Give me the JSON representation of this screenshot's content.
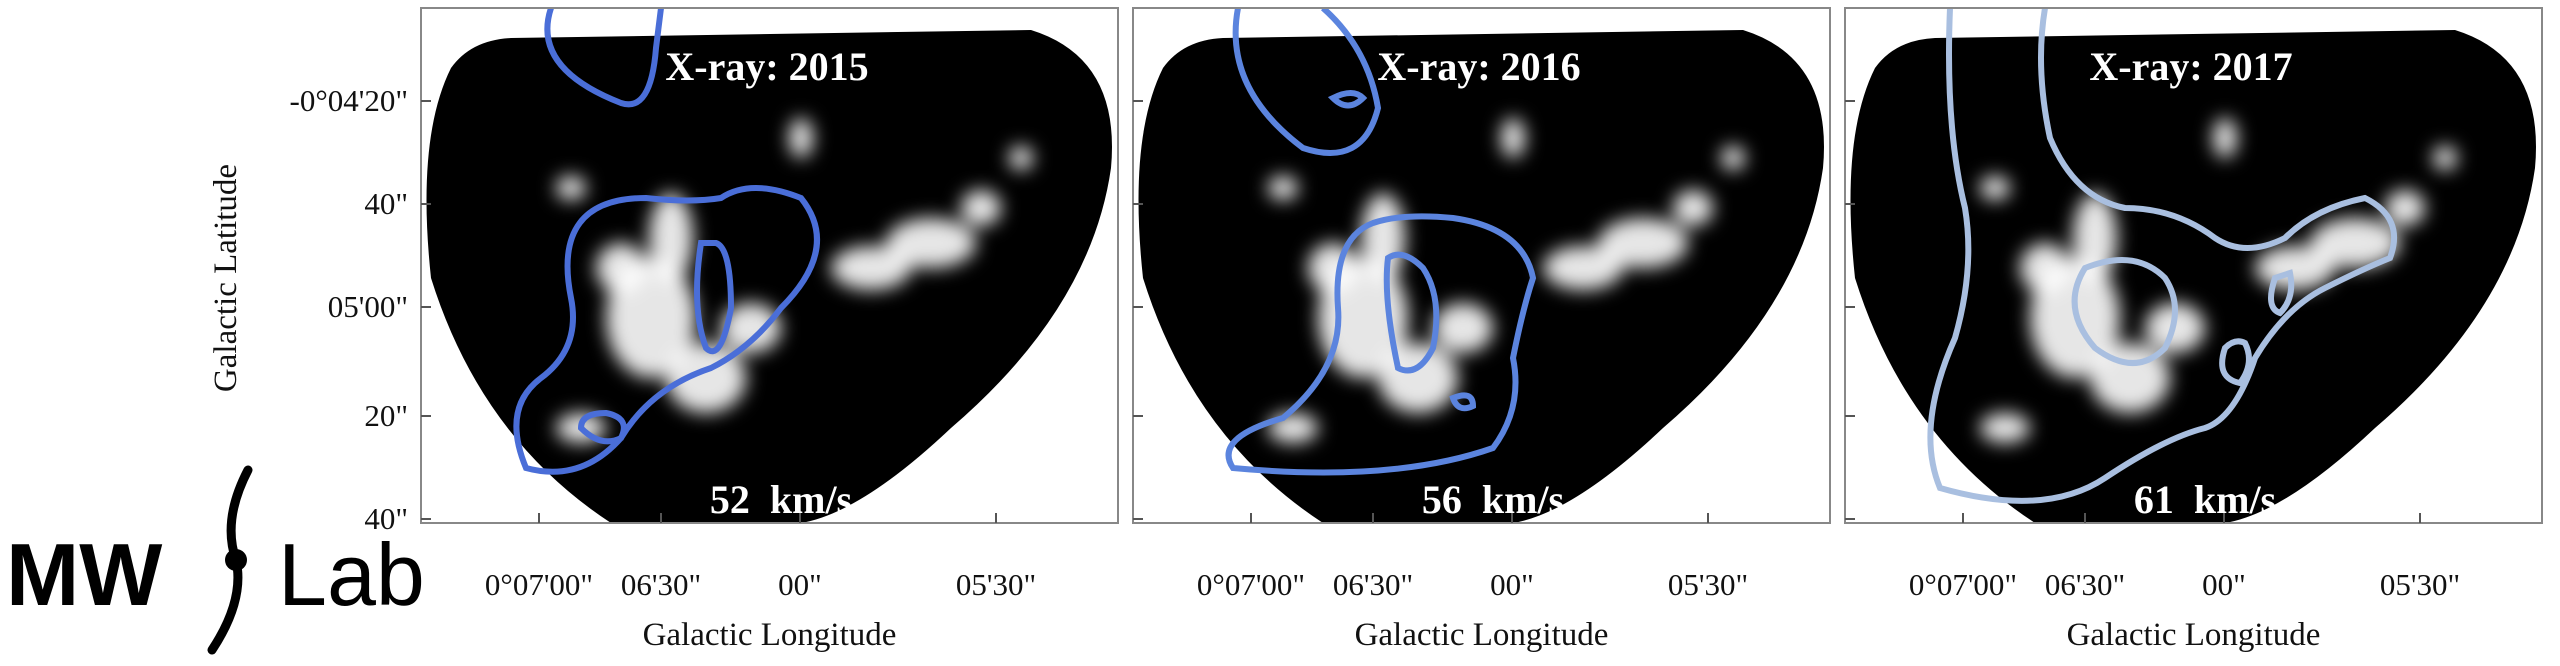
{
  "logo": {
    "left": "MW",
    "right": "Lab"
  },
  "y_axis": {
    "label": "Galactic Latitude",
    "ticks": [
      "-0°04'20\"",
      "40\"",
      "05'00\"",
      "20\"",
      "40\""
    ]
  },
  "panels": [
    {
      "title": "X-ray: 2015",
      "velocity": "52  km/s",
      "x_ticks": [
        "0°07'00\"",
        "06'30\"",
        "00\"",
        "05'30\""
      ],
      "x_label": "Galactic Longitude"
    },
    {
      "title": "X-ray: 2016",
      "velocity": "56  km/s",
      "x_ticks": [
        "0°07'00\"",
        "06'30\"",
        "00\"",
        "05'30\""
      ],
      "x_label": "Galactic Longitude"
    },
    {
      "title": "X-ray: 2017",
      "velocity": "61  km/s",
      "x_ticks": [
        "0°07'00\"",
        "06'30\"",
        "00\"",
        "05'30\""
      ],
      "x_label": "Galactic Longitude"
    }
  ]
}
